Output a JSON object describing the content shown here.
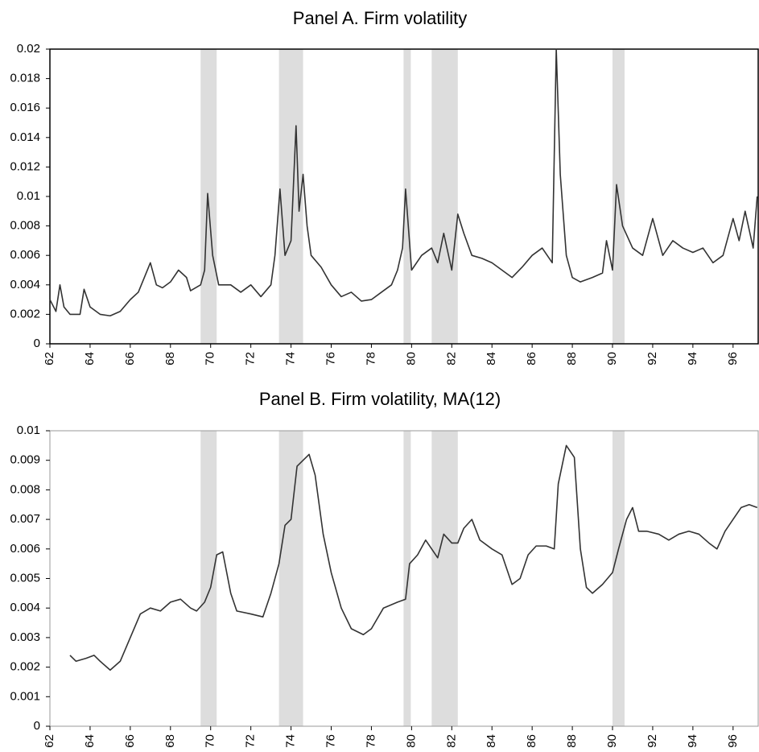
{
  "chart_data": [
    {
      "type": "line",
      "title": "Panel A. Firm volatility",
      "color": "#333333",
      "shade_color": "#dddddd",
      "xlim": [
        62,
        97.25
      ],
      "xticks": [
        62,
        64,
        66,
        68,
        70,
        72,
        74,
        76,
        78,
        80,
        82,
        84,
        86,
        88,
        90,
        92,
        94,
        96
      ],
      "ylim": [
        0,
        0.02
      ],
      "yticks": [
        0,
        0.002,
        0.004,
        0.006,
        0.008,
        0.01,
        0.012,
        0.014,
        0.016,
        0.018,
        0.02
      ],
      "shaded_periods": [
        [
          69.5,
          70.3
        ],
        [
          73.4,
          74.6
        ],
        [
          79.6,
          79.96
        ],
        [
          81.0,
          82.3
        ],
        [
          90.0,
          90.6
        ]
      ],
      "x": [
        62.0,
        62.3,
        62.5,
        62.7,
        63.0,
        63.5,
        63.7,
        64.0,
        64.5,
        65.0,
        65.5,
        66.0,
        66.4,
        66.7,
        67.0,
        67.3,
        67.6,
        68.0,
        68.4,
        68.8,
        69.0,
        69.5,
        69.7,
        69.85,
        70.1,
        70.4,
        71.0,
        71.5,
        72.0,
        72.5,
        73.0,
        73.2,
        73.45,
        73.7,
        74.0,
        74.25,
        74.4,
        74.6,
        74.8,
        75.0,
        75.5,
        76.0,
        76.5,
        77.0,
        77.5,
        78.0,
        78.5,
        79.0,
        79.3,
        79.55,
        79.7,
        80.0,
        80.5,
        81.0,
        81.3,
        81.6,
        82.0,
        82.3,
        82.6,
        83.0,
        83.5,
        84.0,
        84.5,
        85.0,
        85.5,
        86.0,
        86.5,
        87.0,
        87.2,
        87.4,
        87.7,
        88.0,
        88.4,
        89.0,
        89.5,
        89.7,
        90.0,
        90.2,
        90.5,
        91.0,
        91.5,
        92.0,
        92.5,
        93.0,
        93.5,
        94.0,
        94.5,
        95.0,
        95.5,
        96.0,
        96.3,
        96.6,
        97.0,
        97.2
      ],
      "values": [
        0.003,
        0.0022,
        0.004,
        0.0025,
        0.002,
        0.002,
        0.0037,
        0.0025,
        0.002,
        0.0019,
        0.0022,
        0.003,
        0.0035,
        0.0045,
        0.0055,
        0.004,
        0.0038,
        0.0042,
        0.005,
        0.0045,
        0.0036,
        0.004,
        0.005,
        0.0102,
        0.006,
        0.004,
        0.004,
        0.0035,
        0.004,
        0.0032,
        0.004,
        0.006,
        0.0105,
        0.006,
        0.007,
        0.0148,
        0.009,
        0.0115,
        0.008,
        0.006,
        0.0052,
        0.004,
        0.0032,
        0.0035,
        0.0029,
        0.003,
        0.0035,
        0.004,
        0.005,
        0.0065,
        0.0105,
        0.005,
        0.006,
        0.0065,
        0.0055,
        0.0075,
        0.005,
        0.0088,
        0.0075,
        0.006,
        0.0058,
        0.0055,
        0.005,
        0.0045,
        0.0052,
        0.006,
        0.0065,
        0.0055,
        0.02,
        0.0115,
        0.006,
        0.0045,
        0.0042,
        0.0045,
        0.0048,
        0.007,
        0.005,
        0.0108,
        0.008,
        0.0065,
        0.006,
        0.0085,
        0.006,
        0.007,
        0.0065,
        0.0062,
        0.0065,
        0.0055,
        0.006,
        0.0085,
        0.007,
        0.009,
        0.0065,
        0.01
      ]
    },
    {
      "type": "line",
      "title": "Panel B.  Firm volatility, MA(12)",
      "color": "#333333",
      "shade_color": "#dddddd",
      "xlim": [
        62,
        97.25
      ],
      "xticks": [
        62,
        64,
        66,
        68,
        70,
        72,
        74,
        76,
        78,
        80,
        82,
        84,
        86,
        88,
        90,
        92,
        94,
        96
      ],
      "ylim": [
        0,
        0.01
      ],
      "yticks": [
        0,
        0.001,
        0.002,
        0.003,
        0.004,
        0.005,
        0.006,
        0.007,
        0.008,
        0.009,
        0.01
      ],
      "shaded_periods": [
        [
          69.5,
          70.3
        ],
        [
          73.4,
          74.6
        ],
        [
          79.6,
          79.96
        ],
        [
          81.0,
          82.3
        ],
        [
          90.0,
          90.6
        ]
      ],
      "x": [
        63.0,
        63.3,
        63.8,
        64.2,
        64.5,
        65.0,
        65.5,
        66.0,
        66.5,
        67.0,
        67.5,
        68.0,
        68.5,
        69.0,
        69.3,
        69.7,
        70.0,
        70.3,
        70.6,
        71.0,
        71.3,
        72.0,
        72.6,
        73.0,
        73.4,
        73.7,
        74.0,
        74.3,
        74.6,
        74.9,
        75.2,
        75.6,
        76.0,
        76.5,
        77.0,
        77.6,
        78.0,
        78.6,
        79.3,
        79.7,
        79.9,
        80.3,
        80.7,
        81.0,
        81.3,
        81.6,
        82.0,
        82.3,
        82.6,
        83.0,
        83.4,
        84.0,
        84.5,
        85.0,
        85.4,
        85.8,
        86.2,
        86.7,
        87.1,
        87.3,
        87.7,
        88.1,
        88.4,
        88.7,
        89.0,
        89.5,
        90.0,
        90.3,
        90.7,
        91.0,
        91.3,
        91.7,
        92.3,
        92.8,
        93.3,
        93.8,
        94.3,
        94.8,
        95.2,
        95.6,
        96.0,
        96.4,
        96.8,
        97.2
      ],
      "values": [
        0.0024,
        0.0022,
        0.0023,
        0.0024,
        0.0022,
        0.0019,
        0.0022,
        0.003,
        0.0038,
        0.004,
        0.0039,
        0.0042,
        0.0043,
        0.004,
        0.0039,
        0.0042,
        0.0047,
        0.0058,
        0.0059,
        0.0045,
        0.0039,
        0.0038,
        0.0037,
        0.0045,
        0.0055,
        0.0068,
        0.007,
        0.0088,
        0.009,
        0.0092,
        0.0085,
        0.0065,
        0.0052,
        0.004,
        0.0033,
        0.0031,
        0.0033,
        0.004,
        0.0042,
        0.0043,
        0.0055,
        0.0058,
        0.0063,
        0.006,
        0.0057,
        0.0065,
        0.0062,
        0.0062,
        0.0067,
        0.007,
        0.0063,
        0.006,
        0.0058,
        0.0048,
        0.005,
        0.0058,
        0.0061,
        0.0061,
        0.006,
        0.0082,
        0.0095,
        0.0091,
        0.006,
        0.0047,
        0.0045,
        0.0048,
        0.0052,
        0.006,
        0.007,
        0.0074,
        0.0066,
        0.0066,
        0.0065,
        0.0063,
        0.0065,
        0.0066,
        0.0065,
        0.0062,
        0.006,
        0.0066,
        0.007,
        0.0074,
        0.0075,
        0.0074
      ]
    }
  ]
}
